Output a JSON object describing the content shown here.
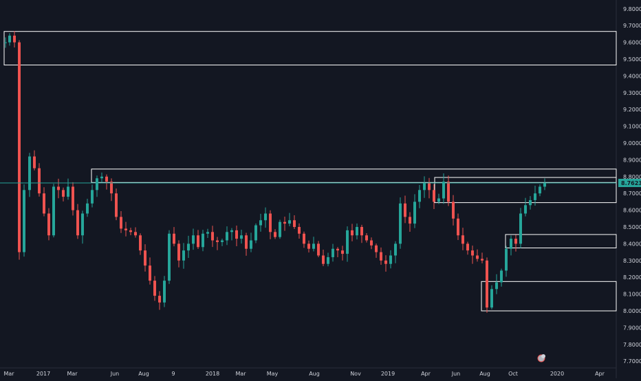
{
  "colors": {
    "background": "#131722",
    "up": "#26a69a",
    "down": "#ef5350",
    "zone_line": "#ffffff",
    "price_line": "#26a69a",
    "axis_text": "#d1d4dc"
  },
  "price_axis": {
    "ticks": [
      "9.8000",
      "9.7000",
      "9.6000",
      "9.5000",
      "9.4000",
      "9.3000",
      "9.2000",
      "9.1000",
      "9.0000",
      "8.9000",
      "8.8000",
      "8.7000",
      "8.6000",
      "8.5000",
      "8.4000",
      "8.3000",
      "8.2000",
      "8.1000",
      "8.0000",
      "7.9000",
      "7.8000",
      "7.7000"
    ],
    "current_price_label": "8.7623"
  },
  "time_axis": {
    "labels": [
      "Mar",
      "2017",
      "Mar",
      "Jun",
      "Aug",
      "9",
      "2018",
      "Mar",
      "May",
      "Aug",
      "Nov",
      "2019",
      "Apr",
      "Jun",
      "Aug",
      "Oct",
      "2020",
      "Apr"
    ]
  },
  "chart_data": {
    "type": "candlestick",
    "ylim": [
      7.66,
      9.84
    ],
    "current_price": 8.7623,
    "zones": [
      {
        "top": 9.665,
        "bottom": 9.465
      },
      {
        "top": 8.845,
        "bottom": 8.765
      },
      {
        "top": 8.795,
        "bottom": 8.645
      },
      {
        "top": 8.455,
        "bottom": 8.375
      },
      {
        "top": 8.175,
        "bottom": 8.0
      }
    ],
    "close_path": [
      [
        0,
        9.6
      ],
      [
        6,
        9.64
      ],
      [
        13,
        9.6
      ],
      [
        20,
        8.35
      ],
      [
        27,
        8.72
      ],
      [
        35,
        8.92
      ],
      [
        42,
        8.85
      ],
      [
        49,
        8.7
      ],
      [
        56,
        8.58
      ],
      [
        63,
        8.45
      ],
      [
        70,
        8.74
      ],
      [
        77,
        8.72
      ],
      [
        84,
        8.68
      ],
      [
        91,
        8.74
      ],
      [
        98,
        8.6
      ],
      [
        105,
        8.45
      ],
      [
        112,
        8.58
      ],
      [
        119,
        8.64
      ],
      [
        126,
        8.72
      ],
      [
        133,
        8.79
      ],
      [
        140,
        8.8
      ],
      [
        147,
        8.77
      ],
      [
        154,
        8.7
      ],
      [
        161,
        8.56
      ],
      [
        168,
        8.49
      ],
      [
        175,
        8.48
      ],
      [
        182,
        8.47
      ],
      [
        189,
        8.45
      ],
      [
        196,
        8.36
      ],
      [
        203,
        8.27
      ],
      [
        210,
        8.18
      ],
      [
        217,
        8.09
      ],
      [
        224,
        8.05
      ],
      [
        231,
        8.18
      ],
      [
        238,
        8.46
      ],
      [
        245,
        8.4
      ],
      [
        252,
        8.3
      ],
      [
        259,
        8.36
      ],
      [
        266,
        8.4
      ],
      [
        273,
        8.45
      ],
      [
        280,
        8.38
      ],
      [
        287,
        8.46
      ],
      [
        294,
        8.47
      ],
      [
        301,
        8.42
      ],
      [
        308,
        8.41
      ],
      [
        315,
        8.42
      ],
      [
        322,
        8.47
      ],
      [
        329,
        8.48
      ],
      [
        336,
        8.43
      ],
      [
        343,
        8.45
      ],
      [
        350,
        8.37
      ],
      [
        357,
        8.42
      ],
      [
        364,
        8.51
      ],
      [
        371,
        8.54
      ],
      [
        378,
        8.58
      ],
      [
        385,
        8.47
      ],
      [
        392,
        8.44
      ],
      [
        399,
        8.53
      ],
      [
        406,
        8.52
      ],
      [
        413,
        8.54
      ],
      [
        420,
        8.5
      ],
      [
        427,
        8.46
      ],
      [
        434,
        8.4
      ],
      [
        441,
        8.37
      ],
      [
        448,
        8.4
      ],
      [
        455,
        8.33
      ],
      [
        462,
        8.28
      ],
      [
        469,
        8.32
      ],
      [
        476,
        8.37
      ],
      [
        483,
        8.36
      ],
      [
        490,
        8.34
      ],
      [
        497,
        8.48
      ],
      [
        504,
        8.45
      ],
      [
        511,
        8.5
      ],
      [
        518,
        8.45
      ],
      [
        525,
        8.42
      ],
      [
        532,
        8.39
      ],
      [
        539,
        8.35
      ],
      [
        546,
        8.3
      ],
      [
        553,
        8.28
      ],
      [
        560,
        8.33
      ],
      [
        567,
        8.4
      ],
      [
        574,
        8.64
      ],
      [
        581,
        8.56
      ],
      [
        588,
        8.52
      ],
      [
        595,
        8.65
      ],
      [
        602,
        8.72
      ],
      [
        609,
        8.76
      ],
      [
        616,
        8.72
      ],
      [
        623,
        8.65
      ],
      [
        630,
        8.67
      ],
      [
        637,
        8.77
      ],
      [
        644,
        8.65
      ],
      [
        651,
        8.55
      ],
      [
        658,
        8.45
      ],
      [
        665,
        8.4
      ],
      [
        672,
        8.36
      ],
      [
        679,
        8.33
      ],
      [
        686,
        8.31
      ],
      [
        693,
        8.3
      ],
      [
        700,
        8.02
      ],
      [
        707,
        8.13
      ],
      [
        714,
        8.17
      ],
      [
        721,
        8.24
      ],
      [
        728,
        8.37
      ],
      [
        735,
        8.43
      ],
      [
        742,
        8.4
      ],
      [
        749,
        8.58
      ],
      [
        756,
        8.63
      ],
      [
        763,
        8.66
      ],
      [
        770,
        8.7
      ],
      [
        777,
        8.74
      ],
      [
        784,
        8.76
      ]
    ]
  }
}
